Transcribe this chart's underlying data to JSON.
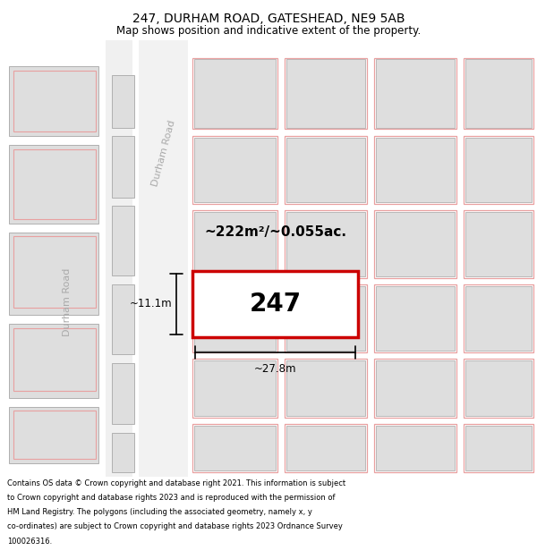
{
  "title_line1": "247, DURHAM ROAD, GATESHEAD, NE9 5AB",
  "title_line2": "Map shows position and indicative extent of the property.",
  "footer_text": "Contains OS data © Crown copyright and database right 2021. This information is subject to Crown copyright and database rights 2023 and is reproduced with the permission of HM Land Registry. The polygons (including the associated geometry, namely x, y co-ordinates) are subject to Crown copyright and database rights 2023 Ordnance Survey 100026316.",
  "area_label": "~222m²/~0.055ac.",
  "plot_number": "247",
  "dim_width": "~27.8m",
  "dim_height": "~11.1m",
  "map_bg": "#f7f7f7",
  "highlight_color": "#cc0000",
  "block_color": "#dedede",
  "block_border": "#b0b0b0",
  "light_red": "#e8a0a0",
  "road_label_upper": "Durham Road",
  "road_label_lower": "Durham Road",
  "title_fontsize": 10,
  "subtitle_fontsize": 8.5,
  "footer_fontsize": 6.0
}
